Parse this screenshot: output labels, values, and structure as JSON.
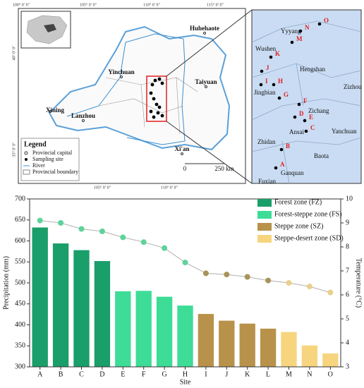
{
  "map": {
    "coords": [
      "100° 0′ 0″",
      "105° 0′ 0″",
      "110° 0′ 0″",
      "115° 0′ 0″",
      "40° 0′ 0″",
      "35° 0′ 0″",
      "105° 0′ 0″",
      "110° 0′ 0″"
    ],
    "cities": [
      "Huhehaote",
      "Yinchuan",
      "Taiyuan",
      "Xining",
      "Lanzhou",
      "Xi'an"
    ],
    "legend": {
      "title": "Legend",
      "items": [
        "Provincial capital",
        "Sampling site",
        "River",
        "Provincial boundary"
      ]
    },
    "scale": [
      "0",
      "250 km"
    ],
    "inset_places": [
      "Yyyang",
      "Wushen",
      "Hengshan",
      "Zizhou",
      "Jingbian",
      "Zichang",
      "Ansai",
      "Yanchuan",
      "Zhidan",
      "Baota",
      "Ganquan",
      "Fuxian"
    ],
    "inset_sites": [
      "O",
      "N",
      "M",
      "K",
      "J",
      "I",
      "H",
      "G",
      "F",
      "D",
      "E",
      "C",
      "B",
      "A"
    ]
  },
  "chart_data": {
    "type": "bar",
    "categories": [
      "A",
      "B",
      "C",
      "D",
      "E",
      "F",
      "G",
      "H",
      "I",
      "J",
      "K",
      "L",
      "M",
      "N",
      "O"
    ],
    "series": [
      {
        "name": "Forest zone (FZ)",
        "color": "#1a9e6a",
        "values": [
          632,
          594,
          578,
          552,
          null,
          null,
          null,
          null,
          null,
          null,
          null,
          null,
          null,
          null,
          null
        ]
      },
      {
        "name": "Forest-steppe zone (FS)",
        "color": "#3ddc97",
        "values": [
          null,
          null,
          null,
          null,
          480,
          481,
          467,
          446,
          null,
          null,
          null,
          null,
          null,
          null,
          null
        ]
      },
      {
        "name": "Steppe zone (SZ)",
        "color": "#b8924a",
        "values": [
          null,
          null,
          null,
          null,
          null,
          null,
          null,
          null,
          426,
          410,
          403,
          391,
          null,
          null,
          null
        ]
      },
      {
        "name": "Steppe-desert zone (SD)",
        "color": "#f6d57e",
        "values": [
          null,
          null,
          null,
          null,
          null,
          null,
          null,
          null,
          null,
          null,
          null,
          null,
          383,
          351,
          332
        ]
      },
      {
        "type": "line",
        "axis": "y2",
        "color": "#b0b0b0",
        "marker_colors": [
          "#5dd39a",
          "#5dd39a",
          "#5dd39a",
          "#5dd39a",
          "#5dd39a",
          "#5dd39a",
          "#5dd39a",
          "#5dd39a",
          "#a8935a",
          "#a8935a",
          "#a8935a",
          "#a8935a",
          "#e9d08a",
          "#e9d08a",
          "#e9d08a"
        ],
        "values": [
          9.1,
          9.0,
          8.75,
          8.65,
          8.4,
          8.2,
          7.95,
          7.35,
          6.9,
          6.85,
          6.75,
          6.6,
          6.5,
          6.35,
          6.1
        ]
      }
    ],
    "ylim": [
      300,
      700
    ],
    "yticks": [
      300,
      350,
      400,
      450,
      500,
      550,
      600,
      650,
      700
    ],
    "y2lim": [
      3,
      10
    ],
    "y2ticks": [
      3,
      4,
      5,
      6,
      7,
      8,
      9,
      10
    ],
    "xlabel": "Site",
    "ylabel": "Precipitation (mm)",
    "y2label": "Temperature (°C)"
  }
}
